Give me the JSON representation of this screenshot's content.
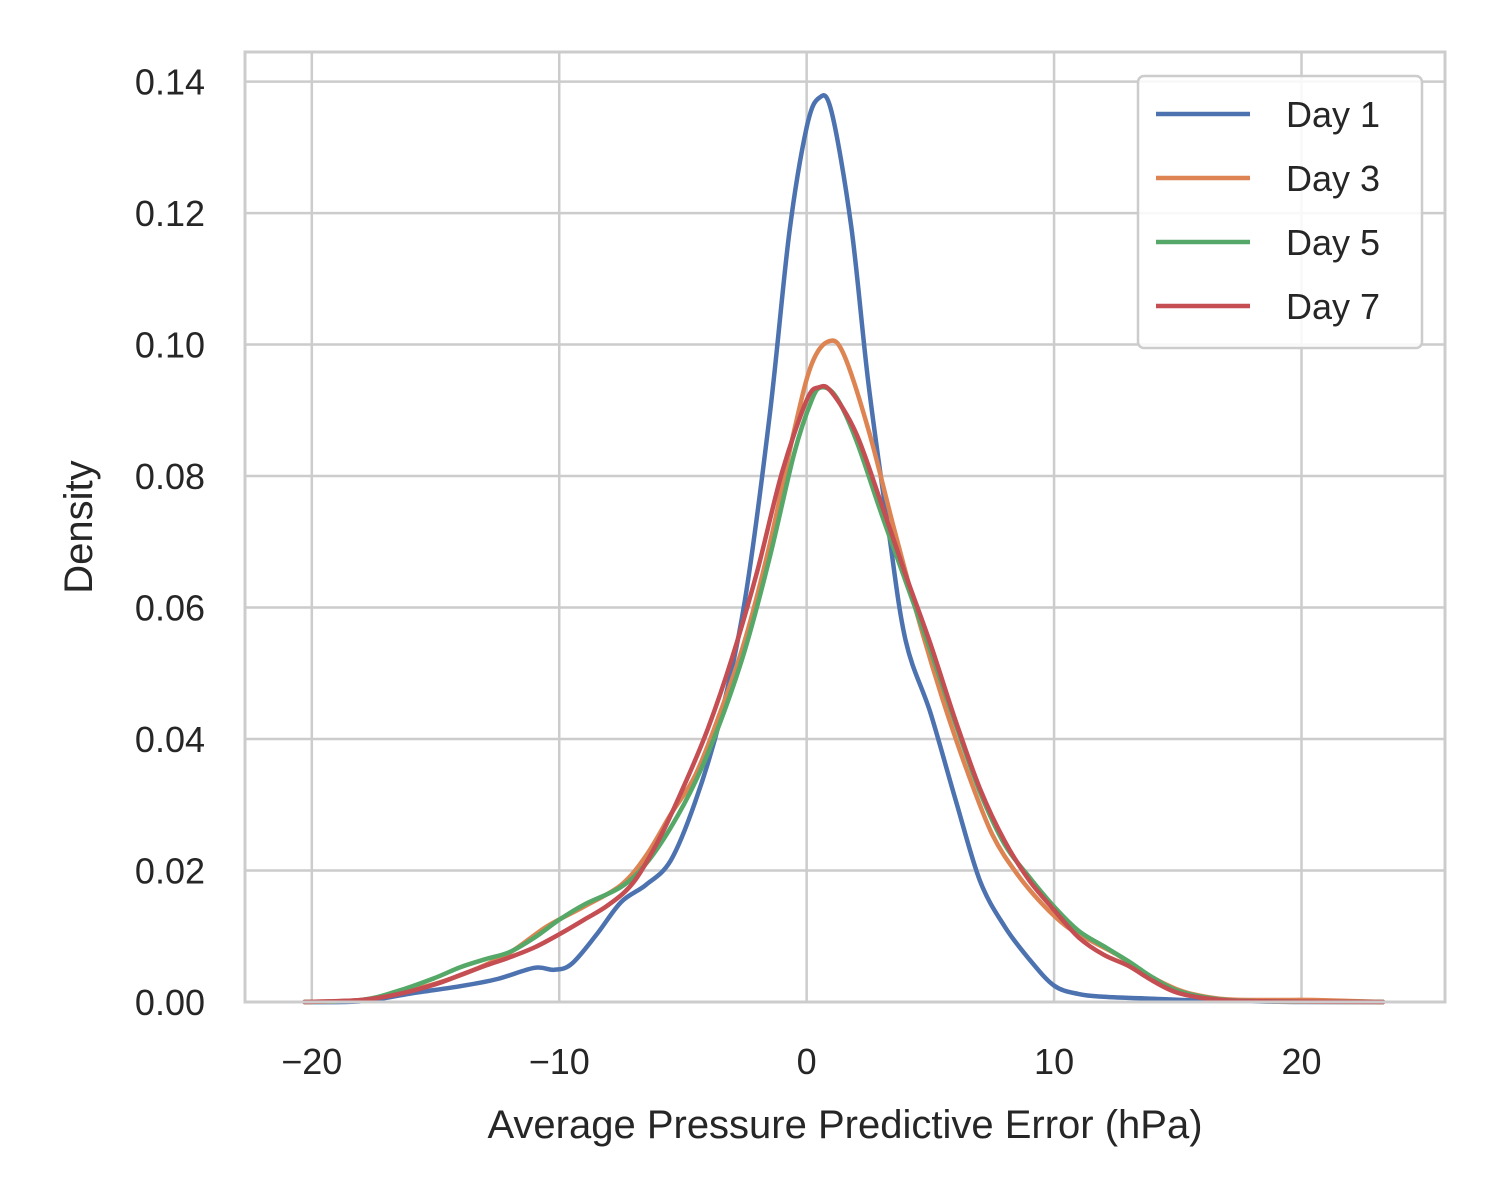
{
  "chart_data": {
    "type": "line",
    "title": "",
    "xlabel": "Average Pressure Predictive Error (hPa)",
    "ylabel": "Density",
    "xlim": [
      -22.7,
      25.8
    ],
    "ylim": [
      0,
      0.1445
    ],
    "xticks": [
      -20,
      -10,
      0,
      10,
      20
    ],
    "xtick_labels": [
      "−20",
      "−10",
      "0",
      "10",
      "20"
    ],
    "yticks": [
      0,
      0.02,
      0.04,
      0.06,
      0.08,
      0.1,
      0.12,
      0.14
    ],
    "ytick_labels": [
      "0.00",
      "0.02",
      "0.04",
      "0.06",
      "0.08",
      "0.10",
      "0.12",
      "0.14"
    ],
    "grid": true,
    "legend_position": "top-right",
    "series": [
      {
        "name": "Day 1",
        "color": "#4c72b0",
        "points": [
          [
            -20.3,
            0.0
          ],
          [
            -18,
            0.0001
          ],
          [
            -16,
            0.0013
          ],
          [
            -14,
            0.0024
          ],
          [
            -12.5,
            0.0035
          ],
          [
            -11,
            0.0052
          ],
          [
            -10.2,
            0.0049
          ],
          [
            -9.5,
            0.0058
          ],
          [
            -8.5,
            0.0102
          ],
          [
            -7.5,
            0.0152
          ],
          [
            -6.5,
            0.0178
          ],
          [
            -5.5,
            0.0215
          ],
          [
            -4.5,
            0.0305
          ],
          [
            -3.5,
            0.043
          ],
          [
            -2.5,
            0.061
          ],
          [
            -1.5,
            0.089
          ],
          [
            -0.7,
            0.117
          ],
          [
            0,
            0.133
          ],
          [
            0.5,
            0.1375
          ],
          [
            1.0,
            0.1355
          ],
          [
            1.8,
            0.118
          ],
          [
            2.5,
            0.094
          ],
          [
            3.3,
            0.072
          ],
          [
            4.0,
            0.055
          ],
          [
            5.0,
            0.044
          ],
          [
            6.0,
            0.031
          ],
          [
            7.0,
            0.0185
          ],
          [
            8.0,
            0.0115
          ],
          [
            9.0,
            0.0065
          ],
          [
            10.0,
            0.0025
          ],
          [
            11,
            0.0012
          ],
          [
            12,
            0.0008
          ],
          [
            14,
            0.0005
          ],
          [
            16,
            0.0002
          ],
          [
            18,
            0.0001
          ],
          [
            20,
            0.0
          ],
          [
            23.3,
            0.0
          ]
        ]
      },
      {
        "name": "Day 3",
        "color": "#dd8452",
        "points": [
          [
            -20.3,
            0.0
          ],
          [
            -18,
            0.0003
          ],
          [
            -16.5,
            0.0014
          ],
          [
            -15,
            0.0028
          ],
          [
            -13.5,
            0.0048
          ],
          [
            -12,
            0.0075
          ],
          [
            -10.5,
            0.0115
          ],
          [
            -9,
            0.0145
          ],
          [
            -7.5,
            0.0178
          ],
          [
            -6.5,
            0.0222
          ],
          [
            -5.5,
            0.0285
          ],
          [
            -4.5,
            0.0345
          ],
          [
            -3.5,
            0.044
          ],
          [
            -2.5,
            0.055
          ],
          [
            -1.5,
            0.0695
          ],
          [
            -0.5,
            0.087
          ],
          [
            0.2,
            0.097
          ],
          [
            0.9,
            0.1005
          ],
          [
            1.5,
            0.0985
          ],
          [
            2.5,
            0.087
          ],
          [
            3.5,
            0.0725
          ],
          [
            4.5,
            0.0585
          ],
          [
            5.5,
            0.046
          ],
          [
            6.5,
            0.035
          ],
          [
            7.5,
            0.0255
          ],
          [
            8.5,
            0.0195
          ],
          [
            9.5,
            0.015
          ],
          [
            10.5,
            0.0115
          ],
          [
            11.5,
            0.0093
          ],
          [
            12.5,
            0.0073
          ],
          [
            13.5,
            0.0048
          ],
          [
            14.5,
            0.0027
          ],
          [
            15.5,
            0.0013
          ],
          [
            17,
            0.0004
          ],
          [
            19,
            0.0003
          ],
          [
            20.5,
            0.0003
          ],
          [
            23.3,
            0.0
          ]
        ]
      },
      {
        "name": "Day 5",
        "color": "#55a868",
        "points": [
          [
            -20.3,
            0.0
          ],
          [
            -18,
            0.0003
          ],
          [
            -16.5,
            0.0017
          ],
          [
            -15,
            0.0037
          ],
          [
            -14,
            0.0053
          ],
          [
            -13,
            0.0065
          ],
          [
            -12,
            0.0076
          ],
          [
            -11,
            0.0098
          ],
          [
            -10,
            0.0125
          ],
          [
            -9,
            0.0148
          ],
          [
            -7.5,
            0.0175
          ],
          [
            -6.5,
            0.021
          ],
          [
            -5.5,
            0.0265
          ],
          [
            -4.5,
            0.0335
          ],
          [
            -3.5,
            0.0425
          ],
          [
            -2.5,
            0.0535
          ],
          [
            -1.5,
            0.0675
          ],
          [
            -0.5,
            0.0835
          ],
          [
            0.2,
            0.0915
          ],
          [
            0.6,
            0.0935
          ],
          [
            1.2,
            0.092
          ],
          [
            2,
            0.0855
          ],
          [
            3,
            0.0745
          ],
          [
            4,
            0.064
          ],
          [
            5,
            0.0535
          ],
          [
            6,
            0.0425
          ],
          [
            7,
            0.032
          ],
          [
            8,
            0.024
          ],
          [
            9,
            0.019
          ],
          [
            10,
            0.0145
          ],
          [
            11,
            0.0108
          ],
          [
            12,
            0.0085
          ],
          [
            13,
            0.0062
          ],
          [
            14,
            0.0037
          ],
          [
            15,
            0.0017
          ],
          [
            16.5,
            0.0005
          ],
          [
            18.5,
            0.0001
          ],
          [
            23.3,
            0.0
          ]
        ]
      },
      {
        "name": "Day 7",
        "color": "#c44e52",
        "points": [
          [
            -20.3,
            0.0
          ],
          [
            -18,
            0.0003
          ],
          [
            -16.5,
            0.0012
          ],
          [
            -15,
            0.0027
          ],
          [
            -14,
            0.0041
          ],
          [
            -13,
            0.0055
          ],
          [
            -12,
            0.0068
          ],
          [
            -11,
            0.0083
          ],
          [
            -10,
            0.0103
          ],
          [
            -9,
            0.0125
          ],
          [
            -8,
            0.0148
          ],
          [
            -7,
            0.0182
          ],
          [
            -6,
            0.0245
          ],
          [
            -5,
            0.0325
          ],
          [
            -4,
            0.0415
          ],
          [
            -3,
            0.0525
          ],
          [
            -2,
            0.0655
          ],
          [
            -1,
            0.0805
          ],
          [
            0,
            0.0915
          ],
          [
            0.5,
            0.0935
          ],
          [
            1,
            0.0928
          ],
          [
            2,
            0.0865
          ],
          [
            3,
            0.076
          ],
          [
            4,
            0.065
          ],
          [
            5,
            0.0545
          ],
          [
            6,
            0.043
          ],
          [
            7,
            0.0325
          ],
          [
            8,
            0.0245
          ],
          [
            9,
            0.0185
          ],
          [
            10,
            0.014
          ],
          [
            11,
            0.0098
          ],
          [
            12,
            0.0072
          ],
          [
            13,
            0.0055
          ],
          [
            14,
            0.0032
          ],
          [
            15,
            0.0014
          ],
          [
            16.5,
            0.0004
          ],
          [
            18.5,
            0.0001
          ],
          [
            23.3,
            0.0
          ]
        ]
      }
    ]
  }
}
